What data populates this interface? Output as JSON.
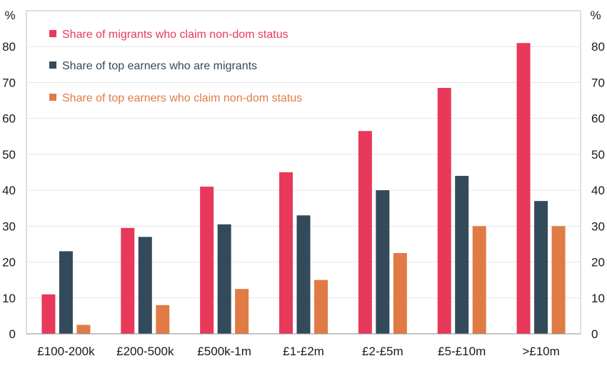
{
  "chart_data": {
    "type": "bar",
    "title": "",
    "xlabel": "",
    "ylabel": "%",
    "ylabel_right": "%",
    "ylim": [
      0,
      90
    ],
    "yticks": [
      0,
      10,
      20,
      30,
      40,
      50,
      60,
      70,
      80
    ],
    "grid": true,
    "legend_position": "top-left",
    "categories": [
      "£100-200k",
      "£200-500k",
      "£500k-1m",
      "£1-£2m",
      "£2-£5m",
      "£5-£10m",
      ">£10m"
    ],
    "series": [
      {
        "name": "Share of migrants who claim non-dom status",
        "color": "#e8395a",
        "values": [
          11,
          29.5,
          41,
          45,
          56.5,
          68.5,
          81
        ]
      },
      {
        "name": "Share of top earners who are migrants",
        "color": "#334a5a",
        "values": [
          23,
          27,
          30.5,
          33,
          40,
          44,
          37
        ]
      },
      {
        "name": "Share of top earners who claim non-dom status",
        "color": "#e07b46",
        "values": [
          2.5,
          8,
          12.5,
          15,
          22.5,
          30,
          30
        ]
      }
    ]
  }
}
